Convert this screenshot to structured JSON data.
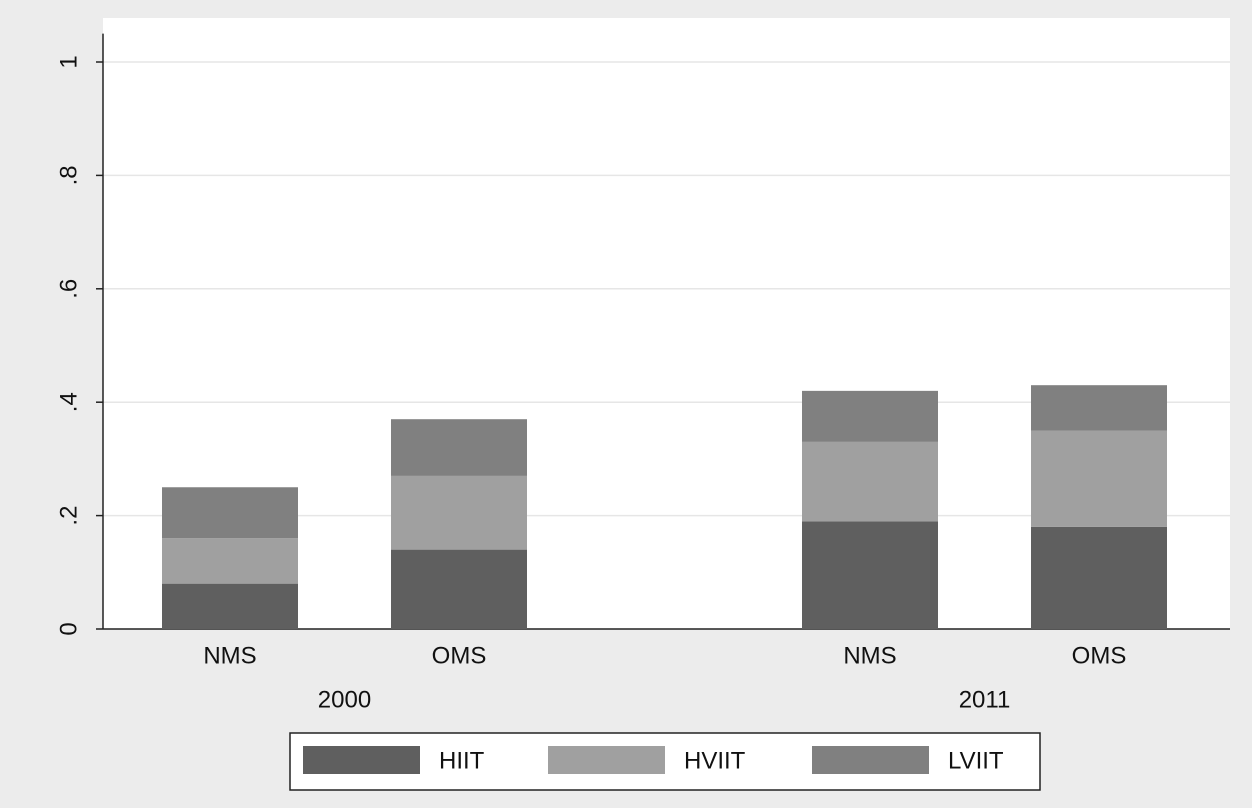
{
  "chart_data": {
    "type": "stacked-bar",
    "categories": [
      "NMS",
      "OMS",
      "NMS",
      "OMS"
    ],
    "groups": [
      "2000",
      "2011"
    ],
    "series": [
      {
        "name": "HIIT",
        "color": "#5f5f5f",
        "values": [
          0.08,
          0.14,
          0.19,
          0.18
        ]
      },
      {
        "name": "HVIIT",
        "color": "#a0a0a0",
        "values": [
          0.08,
          0.13,
          0.14,
          0.17
        ]
      },
      {
        "name": "LVIIT",
        "color": "#808080",
        "values": [
          0.09,
          0.1,
          0.09,
          0.08
        ]
      }
    ],
    "ylim": [
      0,
      1.05
    ],
    "yticks": [
      0,
      {
        "value": 0.2,
        "label": ".2"
      },
      {
        "value": 0.4,
        "label": ".4"
      },
      {
        "value": 0.6,
        "label": ".6"
      },
      {
        "value": 0.8,
        "label": ".8"
      },
      1
    ],
    "grid": true
  }
}
